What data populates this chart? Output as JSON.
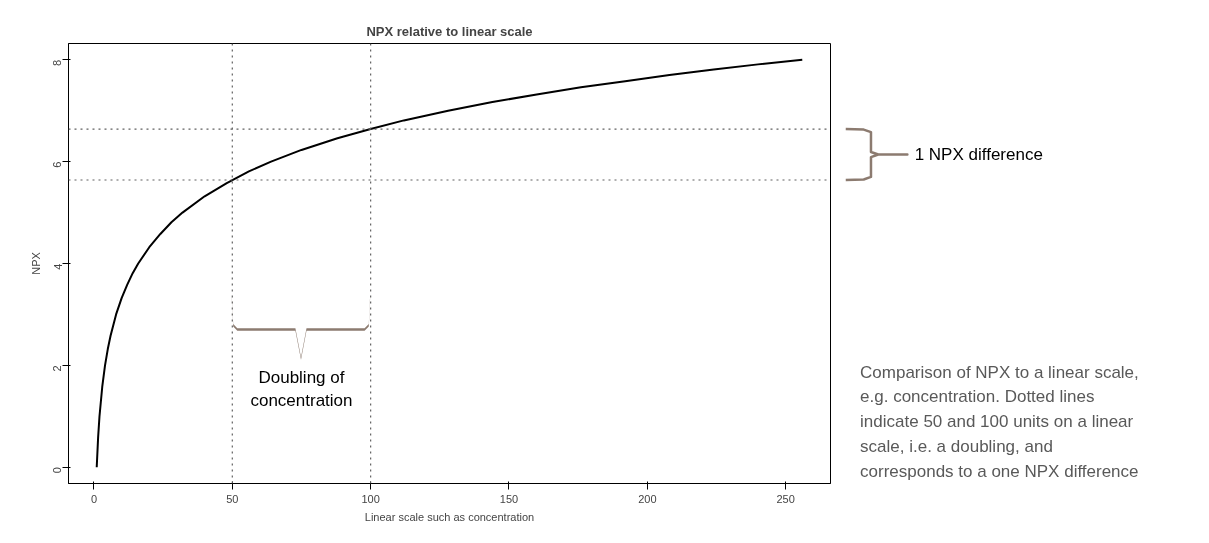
{
  "chart_data": {
    "type": "line",
    "title": "NPX relative to linear scale",
    "xlabel": "Linear scale such as concentration",
    "ylabel": "NPX",
    "x": [
      1,
      1.5,
      2,
      3,
      4,
      5,
      6,
      8,
      10,
      12,
      14,
      16,
      20,
      24,
      28,
      32,
      40,
      48,
      56,
      64,
      75,
      88,
      100,
      112,
      128,
      144,
      160,
      176,
      192,
      208,
      224,
      240,
      256
    ],
    "series": [
      {
        "color": "#000000",
        "values": [
          0,
          0.58,
          1,
          1.58,
          2,
          2.32,
          2.58,
          3,
          3.32,
          3.58,
          3.81,
          4,
          4.32,
          4.58,
          4.81,
          5,
          5.32,
          5.58,
          5.81,
          6,
          6.23,
          6.46,
          6.64,
          6.81,
          7,
          7.17,
          7.32,
          7.46,
          7.58,
          7.7,
          7.81,
          7.91,
          8
        ]
      }
    ],
    "xlim": [
      -9.2,
      266.2
    ],
    "ylim": [
      -0.32,
      8.32
    ],
    "xticks": [
      0,
      50,
      100,
      150,
      200,
      250
    ],
    "yticks": [
      0,
      2,
      4,
      6,
      8
    ],
    "ref_lines": [
      {
        "axis": "x",
        "value": 50,
        "color": "#606060",
        "line_style": "dotted"
      },
      {
        "axis": "x",
        "value": 100,
        "color": "#606060",
        "line_style": "dotted"
      },
      {
        "axis": "y",
        "value": 5.64,
        "color": "#606060",
        "line_style": "dotted"
      },
      {
        "axis": "y",
        "value": 6.64,
        "color": "#606060",
        "line_style": "dotted"
      }
    ],
    "annotations": [
      "Doubling of\nconcentration",
      "1 NPX difference",
      "Comparison of NPX to a linear scale, e.g. concentration. Dotted lines indicate 50 and 100 units on a linear scale, i.e. a doubling, and corresponds to a one NPX difference"
    ],
    "grid": false
  }
}
